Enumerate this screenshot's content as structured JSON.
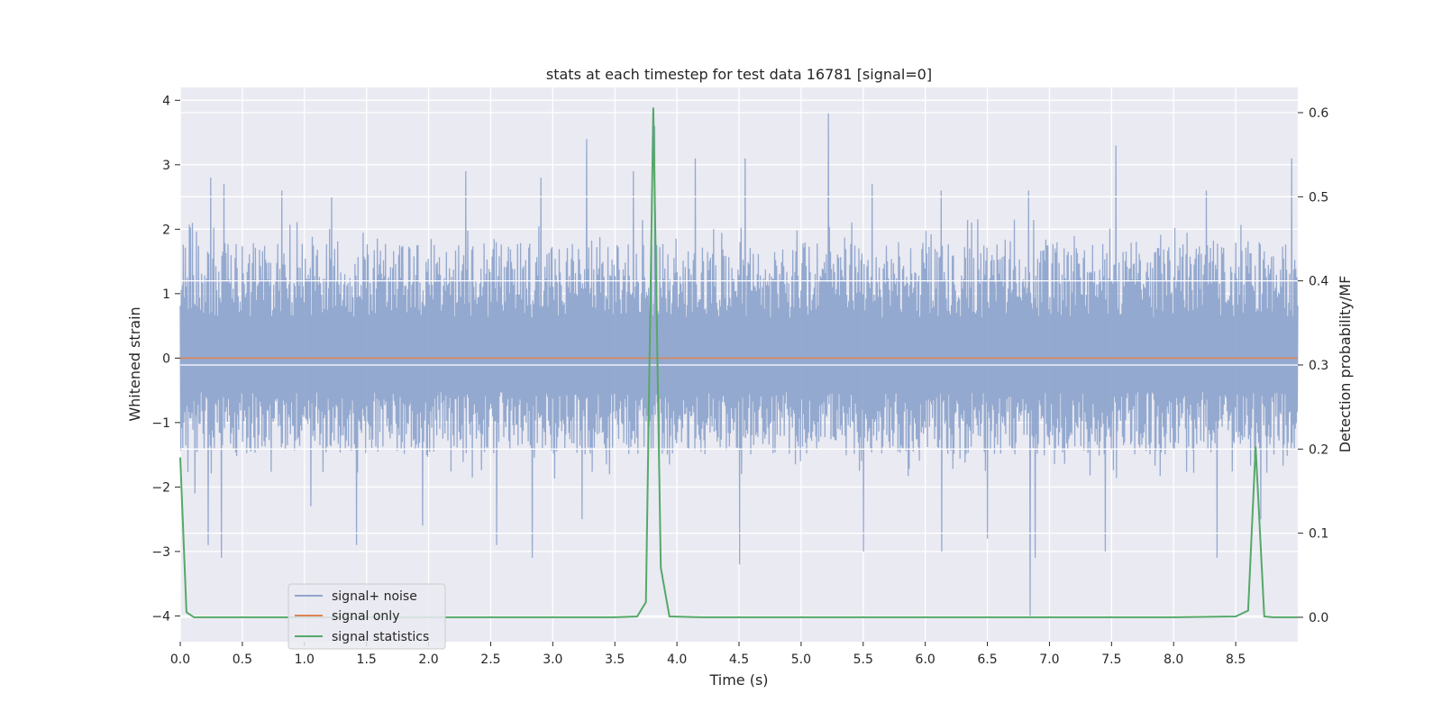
{
  "chart_data": {
    "type": "line",
    "title": "stats at each timestep for test data 16781 [signal=0]",
    "xlabel": "Time (s)",
    "ylabel": "Whitened strain",
    "y2label": "Detection probability/MF",
    "xlim": [
      0,
      9.0
    ],
    "ylim": [
      -4.4,
      4.2
    ],
    "y2lim": [
      -0.029,
      0.63
    ],
    "x_ticks": [
      0.0,
      0.5,
      1.0,
      1.5,
      2.0,
      2.5,
      3.0,
      3.5,
      4.0,
      4.5,
      5.0,
      5.5,
      6.0,
      6.5,
      7.0,
      7.5,
      8.0,
      8.5
    ],
    "x_tick_labels": [
      "0.0",
      "0.5",
      "1.0",
      "1.5",
      "2.0",
      "2.5",
      "3.0",
      "3.5",
      "4.0",
      "4.5",
      "5.0",
      "5.5",
      "6.0",
      "6.5",
      "7.0",
      "7.5",
      "8.0",
      "8.5"
    ],
    "y_ticks": [
      -4,
      -3,
      -2,
      -1,
      0,
      1,
      2,
      3,
      4
    ],
    "y_tick_labels": [
      "−4",
      "−3",
      "−2",
      "−1",
      "0",
      "1",
      "2",
      "3",
      "4"
    ],
    "y2_ticks": [
      0.0,
      0.1,
      0.2,
      0.3,
      0.4,
      0.5,
      0.6
    ],
    "y2_tick_labels": [
      "0.0",
      "0.1",
      "0.2",
      "0.3",
      "0.4",
      "0.5",
      "0.6"
    ],
    "grid": true,
    "legend_position": "lower-left",
    "colors": {
      "background": "#eaeaf2",
      "grid": "#ffffff",
      "noise": "#8fa5cc",
      "signal": "#dd8452",
      "statistics": "#55a868"
    },
    "series": [
      {
        "name": "signal+ noise",
        "axis": "left",
        "style": "dense-noise",
        "typical_min": -1.5,
        "typical_max": 1.8,
        "peak_x": [
          0.1,
          0.24,
          0.35,
          0.82,
          1.22,
          2.3,
          2.9,
          3.27,
          3.65,
          3.82,
          4.15,
          4.55,
          5.22,
          5.57,
          6.13,
          6.83,
          7.53,
          8.26,
          8.95
        ],
        "peak_y": [
          2.1,
          2.8,
          2.7,
          2.6,
          2.5,
          2.9,
          2.8,
          3.4,
          2.9,
          3.6,
          3.1,
          3.1,
          3.8,
          2.7,
          2.6,
          2.6,
          3.3,
          2.6,
          3.1
        ],
        "trough_x": [
          0.12,
          0.22,
          0.33,
          1.05,
          1.42,
          1.95,
          2.55,
          2.83,
          3.23,
          4.5,
          5.5,
          6.13,
          6.5,
          6.84,
          6.88,
          7.45,
          8.35,
          8.7
        ],
        "trough_y": [
          -2.1,
          -2.9,
          -3.1,
          -2.3,
          -2.9,
          -2.6,
          -2.9,
          -3.1,
          -2.5,
          -3.2,
          -3.0,
          -3.0,
          -2.8,
          -4.0,
          -3.1,
          -3.0,
          -3.1,
          -2.5
        ]
      },
      {
        "name": "signal only",
        "axis": "left",
        "x": [
          0.0,
          9.0
        ],
        "y": [
          0.0,
          0.0
        ]
      },
      {
        "name": "signal statistics",
        "axis": "right",
        "x": [
          0.0,
          0.05,
          0.11,
          0.5,
          1.0,
          2.0,
          3.0,
          3.5,
          3.68,
          3.75,
          3.81,
          3.87,
          3.94,
          4.2,
          5.0,
          6.0,
          7.0,
          8.0,
          8.5,
          8.6,
          8.66,
          8.73,
          8.8,
          9.0
        ],
        "y": [
          0.19,
          0.006,
          0.0,
          0.0,
          0.0,
          0.0,
          0.0,
          0.0,
          0.001,
          0.018,
          0.606,
          0.059,
          0.001,
          0.0,
          0.0,
          0.0,
          0.0,
          0.0,
          0.001,
          0.008,
          0.203,
          0.001,
          0.0,
          0.0
        ]
      }
    ]
  }
}
